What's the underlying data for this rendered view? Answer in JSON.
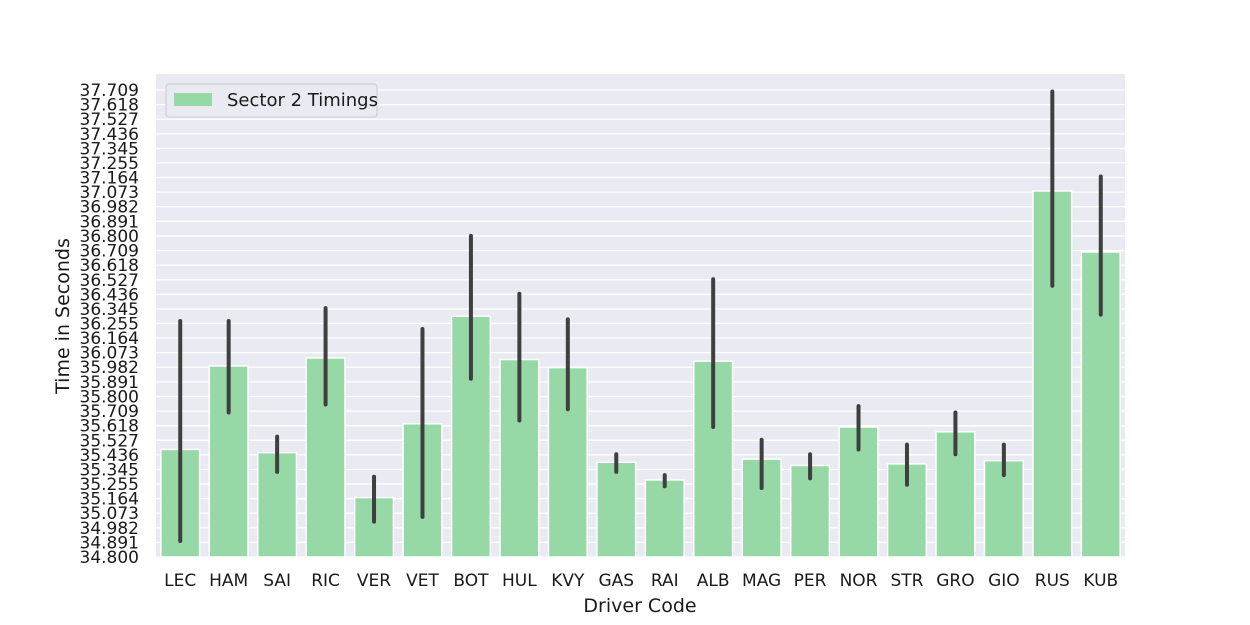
{
  "chart_data": {
    "type": "bar",
    "title": "",
    "xlabel": "Driver Code",
    "ylabel": "Time in Seconds",
    "legend": {
      "placement": "top-left",
      "label": "Sector 2 Timings"
    },
    "grid": true,
    "colors": {
      "bar": "#97d9a6",
      "error_bar": "#3f3f3f",
      "plot_bg": "#eaeaf2",
      "grid": "#ffffff"
    },
    "ylim": [
      34.8,
      37.709
    ],
    "yticks": [
      "34.800",
      "34.891",
      "34.982",
      "35.073",
      "35.164",
      "35.255",
      "35.345",
      "35.436",
      "35.527",
      "35.618",
      "35.709",
      "35.800",
      "35.891",
      "35.982",
      "36.073",
      "36.164",
      "36.255",
      "36.345",
      "36.436",
      "36.527",
      "36.618",
      "36.709",
      "36.800",
      "36.891",
      "36.982",
      "37.073",
      "37.164",
      "37.255",
      "37.345",
      "37.436",
      "37.527",
      "37.618",
      "37.709"
    ],
    "categories": [
      "LEC",
      "HAM",
      "SAI",
      "RIC",
      "VER",
      "VET",
      "BOT",
      "HUL",
      "KVY",
      "GAS",
      "RAI",
      "ALB",
      "MAG",
      "PER",
      "NOR",
      "STR",
      "GRO",
      "GIO",
      "RUS",
      "KUB"
    ],
    "series": [
      {
        "name": "Sector 2 Timings",
        "values": [
          35.47,
          35.99,
          35.45,
          36.04,
          35.17,
          35.63,
          36.3,
          36.03,
          35.98,
          35.39,
          35.28,
          36.02,
          35.41,
          35.37,
          35.61,
          35.38,
          35.58,
          35.4,
          37.08,
          36.7
        ],
        "error_low": [
          34.9,
          35.7,
          35.33,
          35.75,
          35.02,
          35.05,
          35.91,
          35.65,
          35.72,
          35.33,
          35.24,
          35.61,
          35.23,
          35.29,
          35.47,
          35.25,
          35.44,
          35.31,
          36.49,
          36.31
        ],
        "error_high": [
          36.27,
          36.27,
          35.55,
          36.35,
          35.3,
          36.22,
          36.8,
          36.44,
          36.28,
          35.44,
          35.31,
          36.53,
          35.53,
          35.44,
          35.74,
          35.5,
          35.7,
          35.5,
          37.7,
          37.17
        ]
      }
    ]
  }
}
